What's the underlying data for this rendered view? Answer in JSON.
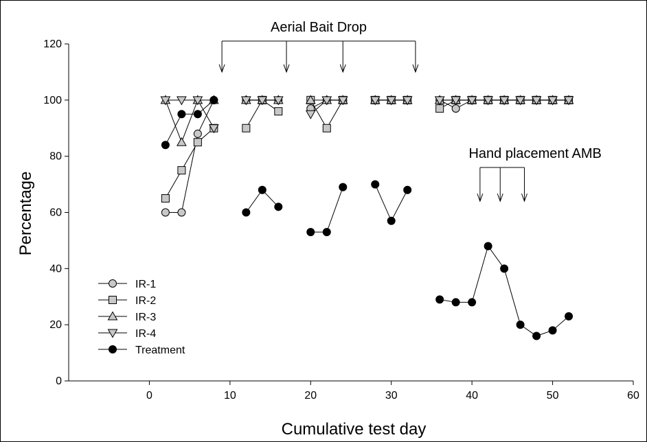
{
  "chart_data": {
    "type": "line",
    "title": "",
    "xlabel": "Cumulative test day",
    "ylabel": "Percentage",
    "xlim": [
      -10,
      60
    ],
    "ylim": [
      0,
      120
    ],
    "xticks": [
      0,
      10,
      20,
      30,
      40,
      50,
      60
    ],
    "yticks": [
      0,
      20,
      40,
      60,
      80,
      100,
      120
    ],
    "grid": false,
    "legend_position": "bottom-left",
    "colors": {
      "gray_marker": "#c8c8c8",
      "black_marker": "#000000",
      "line": "#000000"
    },
    "series": [
      {
        "name": "IR-1",
        "marker": "circle",
        "fill": "#c8c8c8",
        "segments": [
          [
            [
              2,
              60
            ],
            [
              4,
              60
            ],
            [
              6,
              88
            ],
            [
              8,
              100
            ]
          ],
          [
            [
              12,
              100
            ],
            [
              14,
              100
            ],
            [
              16,
              100
            ]
          ],
          [
            [
              20,
              97
            ],
            [
              22,
              100
            ],
            [
              24,
              100
            ]
          ],
          [
            [
              28,
              100
            ],
            [
              30,
              100
            ],
            [
              32,
              100
            ]
          ],
          [
            [
              36,
              100
            ],
            [
              38,
              97
            ],
            [
              40,
              100
            ],
            [
              42,
              100
            ],
            [
              44,
              100
            ],
            [
              46,
              100
            ],
            [
              48,
              100
            ],
            [
              50,
              100
            ],
            [
              52,
              100
            ]
          ]
        ]
      },
      {
        "name": "IR-2",
        "marker": "square",
        "fill": "#c8c8c8",
        "segments": [
          [
            [
              2,
              65
            ],
            [
              4,
              75
            ],
            [
              6,
              85
            ],
            [
              8,
              90
            ]
          ],
          [
            [
              12,
              90
            ],
            [
              14,
              100
            ],
            [
              16,
              96
            ]
          ],
          [
            [
              20,
              100
            ],
            [
              22,
              90
            ],
            [
              24,
              100
            ]
          ],
          [
            [
              28,
              100
            ],
            [
              30,
              100
            ],
            [
              32,
              100
            ]
          ],
          [
            [
              36,
              97
            ],
            [
              38,
              100
            ],
            [
              40,
              100
            ],
            [
              42,
              100
            ],
            [
              44,
              100
            ],
            [
              46,
              100
            ],
            [
              48,
              100
            ],
            [
              50,
              100
            ],
            [
              52,
              100
            ]
          ]
        ]
      },
      {
        "name": "IR-3",
        "marker": "triangle-up",
        "fill": "#c8c8c8",
        "segments": [
          [
            [
              2,
              100
            ],
            [
              4,
              85
            ],
            [
              6,
              100
            ],
            [
              8,
              100
            ]
          ],
          [
            [
              12,
              100
            ],
            [
              14,
              100
            ],
            [
              16,
              100
            ]
          ],
          [
            [
              20,
              100
            ],
            [
              22,
              100
            ],
            [
              24,
              100
            ]
          ],
          [
            [
              28,
              100
            ],
            [
              30,
              100
            ],
            [
              32,
              100
            ]
          ],
          [
            [
              36,
              100
            ],
            [
              38,
              100
            ],
            [
              40,
              100
            ],
            [
              42,
              100
            ],
            [
              44,
              100
            ],
            [
              46,
              100
            ],
            [
              48,
              100
            ],
            [
              50,
              100
            ],
            [
              52,
              100
            ]
          ]
        ]
      },
      {
        "name": "IR-4",
        "marker": "triangle-down",
        "fill": "#c8c8c8",
        "segments": [
          [
            [
              2,
              100
            ],
            [
              4,
              100
            ],
            [
              6,
              100
            ],
            [
              8,
              90
            ]
          ],
          [
            [
              12,
              100
            ],
            [
              14,
              100
            ],
            [
              16,
              100
            ]
          ],
          [
            [
              20,
              95
            ],
            [
              22,
              100
            ],
            [
              24,
              100
            ]
          ],
          [
            [
              28,
              100
            ],
            [
              30,
              100
            ],
            [
              32,
              100
            ]
          ],
          [
            [
              36,
              100
            ],
            [
              38,
              100
            ],
            [
              40,
              100
            ],
            [
              42,
              100
            ],
            [
              44,
              100
            ],
            [
              46,
              100
            ],
            [
              48,
              100
            ],
            [
              50,
              100
            ],
            [
              52,
              100
            ]
          ]
        ]
      },
      {
        "name": "Treatment",
        "marker": "circle",
        "fill": "#000000",
        "segments": [
          [
            [
              2,
              84
            ],
            [
              4,
              95
            ],
            [
              6,
              95
            ],
            [
              8,
              100
            ]
          ],
          [
            [
              12,
              60
            ],
            [
              14,
              68
            ],
            [
              16,
              62
            ]
          ],
          [
            [
              20,
              53
            ],
            [
              22,
              53
            ],
            [
              24,
              69
            ]
          ],
          [
            [
              28,
              70
            ],
            [
              30,
              57
            ],
            [
              32,
              68
            ]
          ],
          [
            [
              36,
              29
            ],
            [
              38,
              28
            ],
            [
              40,
              28
            ],
            [
              42,
              48
            ],
            [
              44,
              40
            ],
            [
              46,
              20
            ],
            [
              48,
              16
            ],
            [
              50,
              18
            ],
            [
              52,
              23
            ]
          ]
        ]
      }
    ],
    "annotations": [
      {
        "text": "Aerial Bait Drop",
        "arrow_x": [
          9,
          17,
          24,
          33
        ],
        "bracket_y": 121,
        "arrow_tip_y": 110
      },
      {
        "text": "Hand placement AMB",
        "arrow_x": [
          41,
          43.5,
          46.5
        ],
        "bracket_y": 76,
        "arrow_tip_y": 64
      }
    ]
  }
}
